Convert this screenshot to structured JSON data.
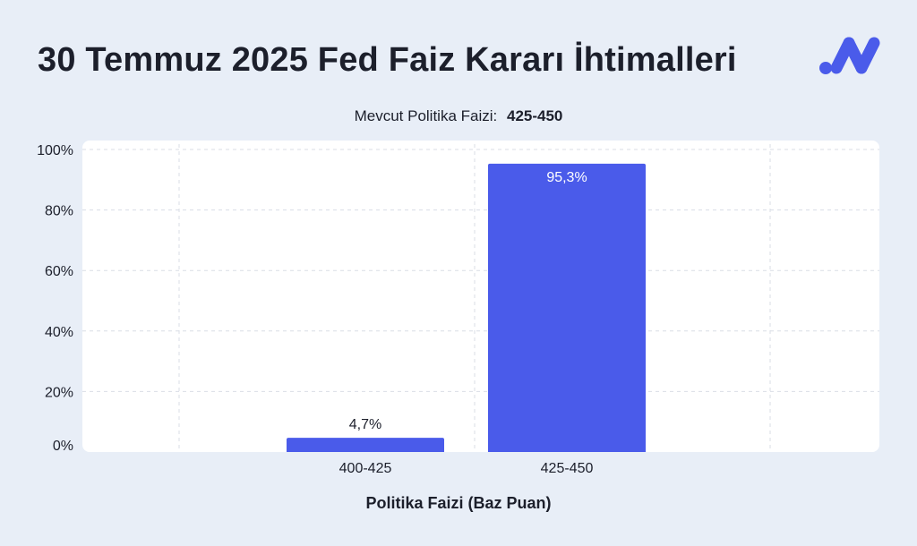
{
  "title": "30 Temmuz 2025 Fed Faiz Kararı İhtimalleri",
  "subtitle_label": "Mevcut Politika Faizi:",
  "subtitle_value": "425-450",
  "logo_icon": "brand-logo-icon",
  "colors": {
    "background": "#e8eef7",
    "plot_background": "#ffffff",
    "bar": "#4a5bea",
    "brand": "#4a5bea",
    "text": "#1c1f2b",
    "grid": "#d9dde6"
  },
  "chart_data": {
    "type": "bar",
    "categories": [
      "400-425",
      "425-450"
    ],
    "values": [
      4.7,
      95.3
    ],
    "value_labels": [
      "4,7%",
      "95,3%"
    ],
    "title": "30 Temmuz 2025 Fed Faiz Kararı İhtimalleri",
    "xlabel": "Politika Faizi (Baz Puan)",
    "ylabel": "",
    "ylim": [
      0,
      100
    ],
    "yticks": [
      0,
      20,
      40,
      60,
      80,
      100
    ],
    "ytick_labels": [
      "0%",
      "20%",
      "40%",
      "60%",
      "80%",
      "100%"
    ],
    "grid": true,
    "legend": "none"
  }
}
